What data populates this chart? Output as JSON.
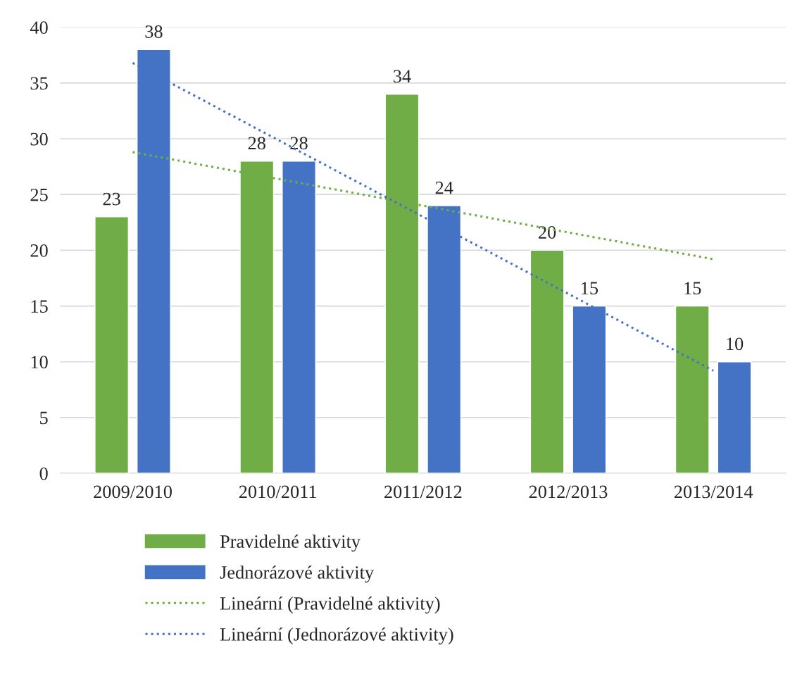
{
  "chart_data": {
    "type": "bar",
    "categories": [
      "2009/2010",
      "2010/2011",
      "2011/2012",
      "2012/2013",
      "2013/2014"
    ],
    "series": [
      {
        "name": "Pravidelné aktivity",
        "color": "#70ad47",
        "values": [
          23,
          28,
          34,
          20,
          15
        ],
        "value_labels": [
          "23",
          "28",
          "34",
          "20",
          "15"
        ]
      },
      {
        "name": "Jednorázové aktivity",
        "color": "#4472c4",
        "values": [
          38,
          28,
          24,
          15,
          10
        ],
        "value_labels": [
          "38",
          "28",
          "24",
          "15",
          "10"
        ]
      },
      {
        "name": "Lineární (Pravidelné aktivity)",
        "type": "line",
        "line_style": "dotted",
        "color": "#70ad47",
        "values": [
          28.8,
          26.4,
          24,
          21.6,
          19.2
        ]
      },
      {
        "name": "Lineární (Jednorázové aktivity)",
        "type": "line",
        "line_style": "dotted",
        "color": "#4472c4",
        "values": [
          36.8,
          29.9,
          23,
          16.1,
          9.2
        ]
      }
    ],
    "ylim": [
      0,
      40
    ],
    "yticks": [
      0,
      5,
      10,
      15,
      20,
      25,
      30,
      35,
      40
    ],
    "grid": "y",
    "legend": "bottom"
  }
}
